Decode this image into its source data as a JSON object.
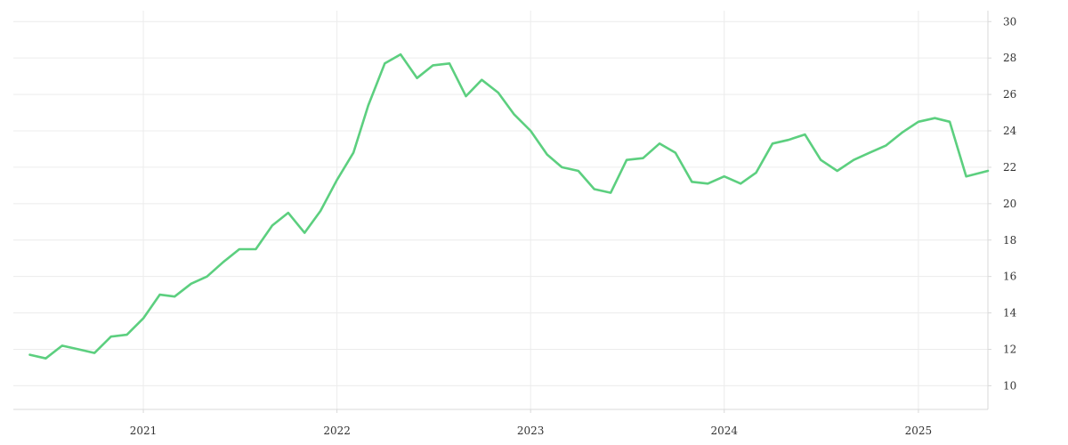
{
  "chart_data": {
    "type": "line",
    "title": "",
    "xlabel": "",
    "ylabel": "",
    "grid": true,
    "y_axis_side": "right",
    "ylim": [
      8.7,
      30.6
    ],
    "yticks": [
      10,
      12,
      14,
      16,
      18,
      20,
      22,
      24,
      26,
      28,
      30
    ],
    "xlim": [
      "2020-05-01",
      "2025-05-12"
    ],
    "xticks": [
      {
        "date": "2021-01-01",
        "label": "2021"
      },
      {
        "date": "2022-01-01",
        "label": "2022"
      },
      {
        "date": "2023-01-01",
        "label": "2023"
      },
      {
        "date": "2024-01-01",
        "label": "2024"
      },
      {
        "date": "2025-01-01",
        "label": "2025"
      }
    ],
    "series": [
      {
        "color": "#5ccf7f",
        "points": [
          [
            "2020-06-01",
            11.7
          ],
          [
            "2020-07-01",
            11.5
          ],
          [
            "2020-08-01",
            12.2
          ],
          [
            "2020-09-01",
            12.0
          ],
          [
            "2020-10-01",
            11.8
          ],
          [
            "2020-11-01",
            12.7
          ],
          [
            "2020-12-01",
            12.8
          ],
          [
            "2021-01-01",
            13.7
          ],
          [
            "2021-02-01",
            15.0
          ],
          [
            "2021-03-01",
            14.9
          ],
          [
            "2021-04-01",
            15.6
          ],
          [
            "2021-05-01",
            16.0
          ],
          [
            "2021-06-01",
            16.8
          ],
          [
            "2021-07-01",
            17.5
          ],
          [
            "2021-08-01",
            17.5
          ],
          [
            "2021-09-01",
            18.8
          ],
          [
            "2021-10-01",
            19.5
          ],
          [
            "2021-11-01",
            18.4
          ],
          [
            "2021-12-01",
            19.6
          ],
          [
            "2022-01-01",
            21.3
          ],
          [
            "2022-02-01",
            22.8
          ],
          [
            "2022-03-01",
            25.4
          ],
          [
            "2022-04-01",
            27.7
          ],
          [
            "2022-05-01",
            28.2
          ],
          [
            "2022-06-01",
            26.9
          ],
          [
            "2022-07-01",
            27.6
          ],
          [
            "2022-08-01",
            27.7
          ],
          [
            "2022-09-01",
            25.9
          ],
          [
            "2022-10-01",
            26.8
          ],
          [
            "2022-11-01",
            26.1
          ],
          [
            "2022-12-01",
            24.9
          ],
          [
            "2023-01-01",
            24.0
          ],
          [
            "2023-02-01",
            22.7
          ],
          [
            "2023-03-01",
            22.0
          ],
          [
            "2023-04-01",
            21.8
          ],
          [
            "2023-05-01",
            20.8
          ],
          [
            "2023-06-01",
            20.6
          ],
          [
            "2023-07-01",
            22.4
          ],
          [
            "2023-08-01",
            22.5
          ],
          [
            "2023-09-01",
            23.3
          ],
          [
            "2023-10-01",
            22.8
          ],
          [
            "2023-11-01",
            21.2
          ],
          [
            "2023-12-01",
            21.1
          ],
          [
            "2024-01-01",
            21.5
          ],
          [
            "2024-02-01",
            21.1
          ],
          [
            "2024-03-01",
            21.7
          ],
          [
            "2024-04-01",
            23.3
          ],
          [
            "2024-05-01",
            23.5
          ],
          [
            "2024-06-01",
            23.8
          ],
          [
            "2024-07-01",
            22.4
          ],
          [
            "2024-08-01",
            21.8
          ],
          [
            "2024-09-01",
            22.4
          ],
          [
            "2024-10-01",
            22.8
          ],
          [
            "2024-11-01",
            23.2
          ],
          [
            "2024-12-01",
            23.9
          ],
          [
            "2025-01-01",
            24.5
          ],
          [
            "2025-02-01",
            24.7
          ],
          [
            "2025-03-01",
            24.5
          ],
          [
            "2025-04-01",
            21.5
          ],
          [
            "2025-05-12",
            21.8
          ]
        ]
      }
    ]
  }
}
